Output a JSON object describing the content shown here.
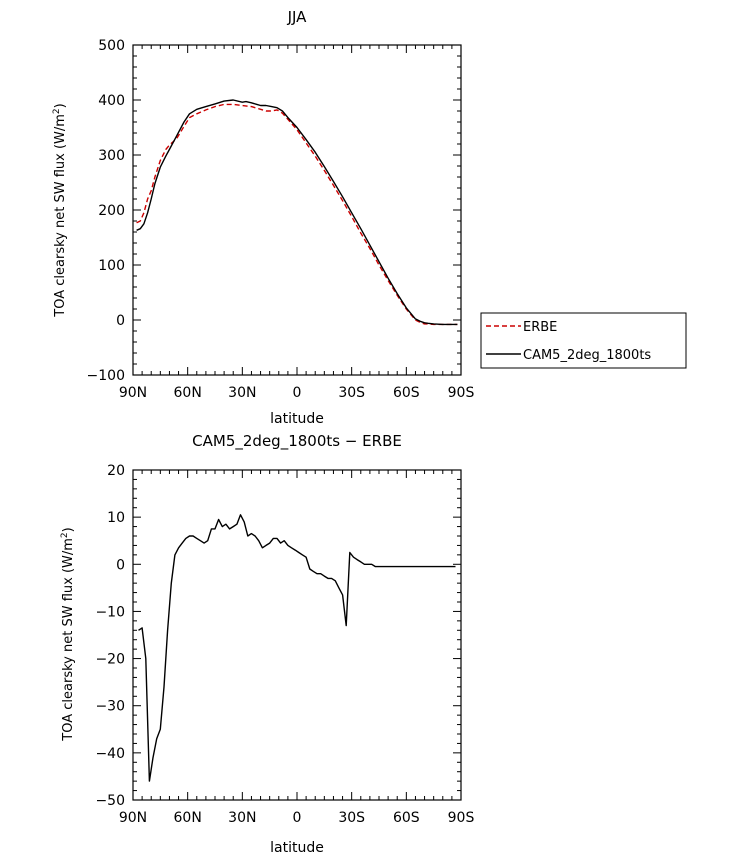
{
  "chart_data": [
    {
      "type": "line",
      "title": "JJA",
      "xlabel": "latitude",
      "ylabel": "TOA clearsky net SW flux (W/m",
      "ylabel_sup": "2",
      "ylabel_end": ")",
      "xlim": [
        90,
        -90
      ],
      "ylim": [
        -100,
        500
      ],
      "xticks": [
        90,
        60,
        30,
        0,
        -30,
        -60,
        -90
      ],
      "xtick_labels": [
        "90N",
        "60N",
        "30N",
        "0",
        "30S",
        "60S",
        "90S"
      ],
      "yticks": [
        -100,
        0,
        100,
        200,
        300,
        400,
        500
      ],
      "ytick_labels": [
        "−100",
        "0",
        "100",
        "200",
        "300",
        "400",
        "500"
      ],
      "legend": {
        "placement": "right",
        "entries": [
          {
            "name": "ERBE",
            "color": "#cc0000",
            "dash": true
          },
          {
            "name": "CAM5_2deg_1800ts",
            "color": "#000000",
            "dash": false
          }
        ]
      },
      "series": [
        {
          "name": "ERBE",
          "color": "#cc0000",
          "x": [
            88,
            86,
            84,
            82,
            80,
            78,
            75,
            72,
            70,
            66,
            62,
            59,
            55,
            50,
            45,
            40,
            35,
            30,
            25,
            20,
            17,
            14,
            11,
            8,
            5,
            0,
            -5,
            -10,
            -15,
            -20,
            -25,
            -30,
            -35,
            -40,
            -45,
            -50,
            -55,
            -60,
            -65,
            -68,
            -70,
            -72,
            -75,
            -80,
            -85,
            -88
          ],
          "y": [
            177,
            180,
            195,
            220,
            235,
            260,
            290,
            310,
            318,
            330,
            352,
            368,
            375,
            382,
            388,
            392,
            392,
            390,
            388,
            383,
            380,
            380,
            382,
            376,
            365,
            346,
            322,
            298,
            272,
            245,
            217,
            188,
            158,
            130,
            100,
            72,
            45,
            20,
            0,
            -5,
            -7,
            -7,
            -8,
            -8,
            -8,
            -8
          ]
        },
        {
          "name": "CAM5_2deg_1800ts",
          "color": "#000000",
          "x": [
            88,
            86,
            84,
            82,
            80,
            78,
            75,
            72,
            70,
            66,
            62,
            59,
            55,
            50,
            45,
            40,
            35,
            30,
            28,
            25,
            22,
            20,
            17,
            14,
            11,
            8,
            5,
            0,
            -5,
            -10,
            -15,
            -20,
            -25,
            -30,
            -35,
            -40,
            -45,
            -50,
            -55,
            -60,
            -65,
            -68,
            -70,
            -72,
            -75,
            -80,
            -85,
            -88
          ],
          "y": [
            163,
            166,
            175,
            195,
            220,
            248,
            278,
            298,
            310,
            335,
            360,
            375,
            383,
            388,
            393,
            398,
            400,
            396,
            397,
            395,
            392,
            390,
            390,
            388,
            386,
            380,
            368,
            350,
            328,
            305,
            279,
            252,
            224,
            195,
            166,
            136,
            106,
            76,
            48,
            22,
            2,
            -3,
            -5,
            -6,
            -7,
            -8,
            -8,
            -8
          ]
        }
      ]
    },
    {
      "type": "line",
      "title": "CAM5_2deg_1800ts − ERBE",
      "xlabel": "latitude",
      "ylabel": "TOA clearsky net SW flux (W/m",
      "ylabel_sup": "2",
      "ylabel_end": ")",
      "xlim": [
        90,
        -90
      ],
      "ylim": [
        -50,
        20
      ],
      "xticks": [
        90,
        60,
        30,
        0,
        -30,
        -60,
        -90
      ],
      "xtick_labels": [
        "90N",
        "60N",
        "30N",
        "0",
        "30S",
        "60S",
        "90S"
      ],
      "yticks": [
        -50,
        -40,
        -30,
        -20,
        -10,
        0,
        10,
        20
      ],
      "ytick_labels": [
        "−50",
        "−40",
        "−30",
        "−20",
        "−10",
        "0",
        "10",
        "20"
      ],
      "series": [
        {
          "name": "CAM5_2deg_1800ts",
          "color": "#000000",
          "x": [
            87,
            85,
            83,
            81,
            79,
            77,
            75,
            73,
            71,
            69,
            67,
            65,
            63,
            61,
            59,
            57,
            55,
            53,
            51,
            49,
            47,
            45,
            43,
            41,
            39,
            37,
            35,
            33,
            31,
            29,
            27,
            25,
            23,
            21,
            19,
            17,
            15,
            13,
            11,
            9,
            7,
            5,
            3,
            1,
            -1,
            -3,
            -5,
            -7,
            -9,
            -11,
            -13,
            -15,
            -17,
            -19,
            -21,
            -23,
            -25,
            -27,
            -29,
            -31,
            -33,
            -35,
            -37,
            -39,
            -41,
            -43,
            -45,
            -47,
            -49,
            -51,
            -53,
            -55,
            -57,
            -59,
            -61,
            -63,
            -65,
            -67,
            -69,
            -71,
            -73,
            -75,
            -77,
            -79,
            -81,
            -83,
            -85,
            -87
          ],
          "y": [
            -14,
            -13.5,
            -20,
            -46,
            -41,
            -37,
            -35,
            -26,
            -14,
            -4,
            2,
            3.5,
            4.5,
            5.5,
            6,
            6,
            5.5,
            5,
            4.5,
            5,
            7.5,
            7.5,
            9.5,
            8,
            8.5,
            7.5,
            8,
            8.5,
            10.5,
            9,
            6,
            6.5,
            6,
            5,
            3.5,
            4,
            4.5,
            5.5,
            5.5,
            4.5,
            5,
            4,
            3.5,
            3,
            2.5,
            2,
            1.5,
            -1,
            -1.5,
            -2,
            -2,
            -2.5,
            -3,
            -3,
            -3.5,
            -5,
            -6.5,
            -13,
            2.5,
            1.5,
            1,
            0.5,
            0,
            0,
            0,
            -0.5,
            -0.5,
            -0.5,
            -0.5,
            -0.5,
            -0.5,
            -0.5,
            -0.5,
            -0.5,
            -0.5,
            -0.5,
            -0.5,
            -0.5,
            -0.5,
            -0.5,
            -0.5,
            -0.5,
            -0.5,
            -0.5,
            -0.5,
            -0.5,
            -0.5,
            -0.5
          ]
        }
      ]
    }
  ]
}
